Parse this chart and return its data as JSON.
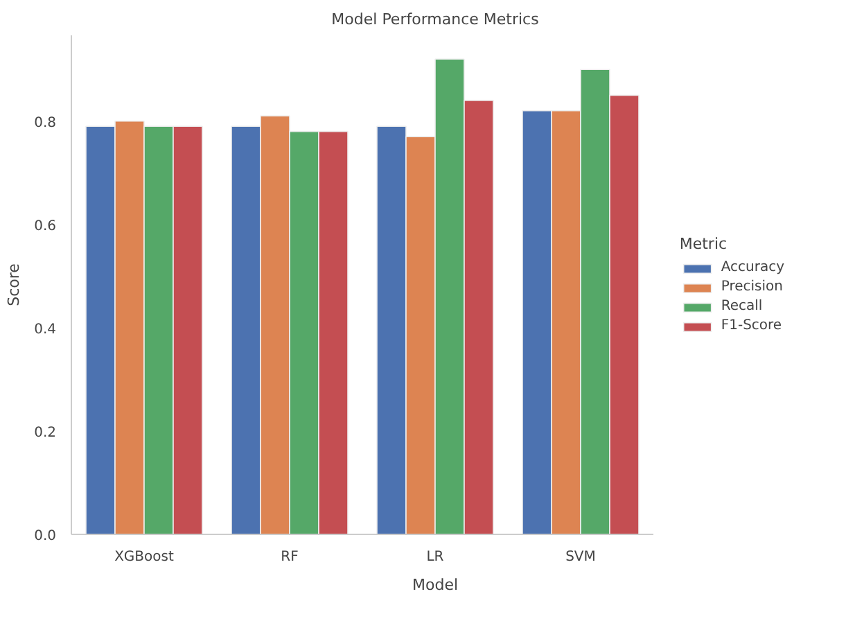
{
  "chart_data": {
    "type": "bar",
    "title": "Model Performance Metrics",
    "xlabel": "Model",
    "ylabel": "Score",
    "legend_title": "Metric",
    "categories": [
      "XGBoost",
      "RF",
      "LR",
      "SVM"
    ],
    "series": [
      {
        "name": "Accuracy",
        "color": "#4c72b0",
        "values": [
          0.79,
          0.79,
          0.79,
          0.82
        ]
      },
      {
        "name": "Precision",
        "color": "#dd8452",
        "values": [
          0.8,
          0.81,
          0.77,
          0.82
        ]
      },
      {
        "name": "Recall",
        "color": "#55a868",
        "values": [
          0.79,
          0.78,
          0.92,
          0.9
        ]
      },
      {
        "name": "F1-Score",
        "color": "#c44e52",
        "values": [
          0.79,
          0.78,
          0.84,
          0.85
        ]
      }
    ],
    "ylim": [
      0,
      0.966
    ],
    "yticks": [
      {
        "value": 0,
        "label": "0.0"
      },
      {
        "value": 0.2,
        "label": "0.2"
      },
      {
        "value": 0.4,
        "label": "0.4"
      },
      {
        "value": 0.6,
        "label": "0.6"
      },
      {
        "value": 0.8,
        "label": "0.8"
      }
    ],
    "grid": false,
    "legend": "right"
  }
}
